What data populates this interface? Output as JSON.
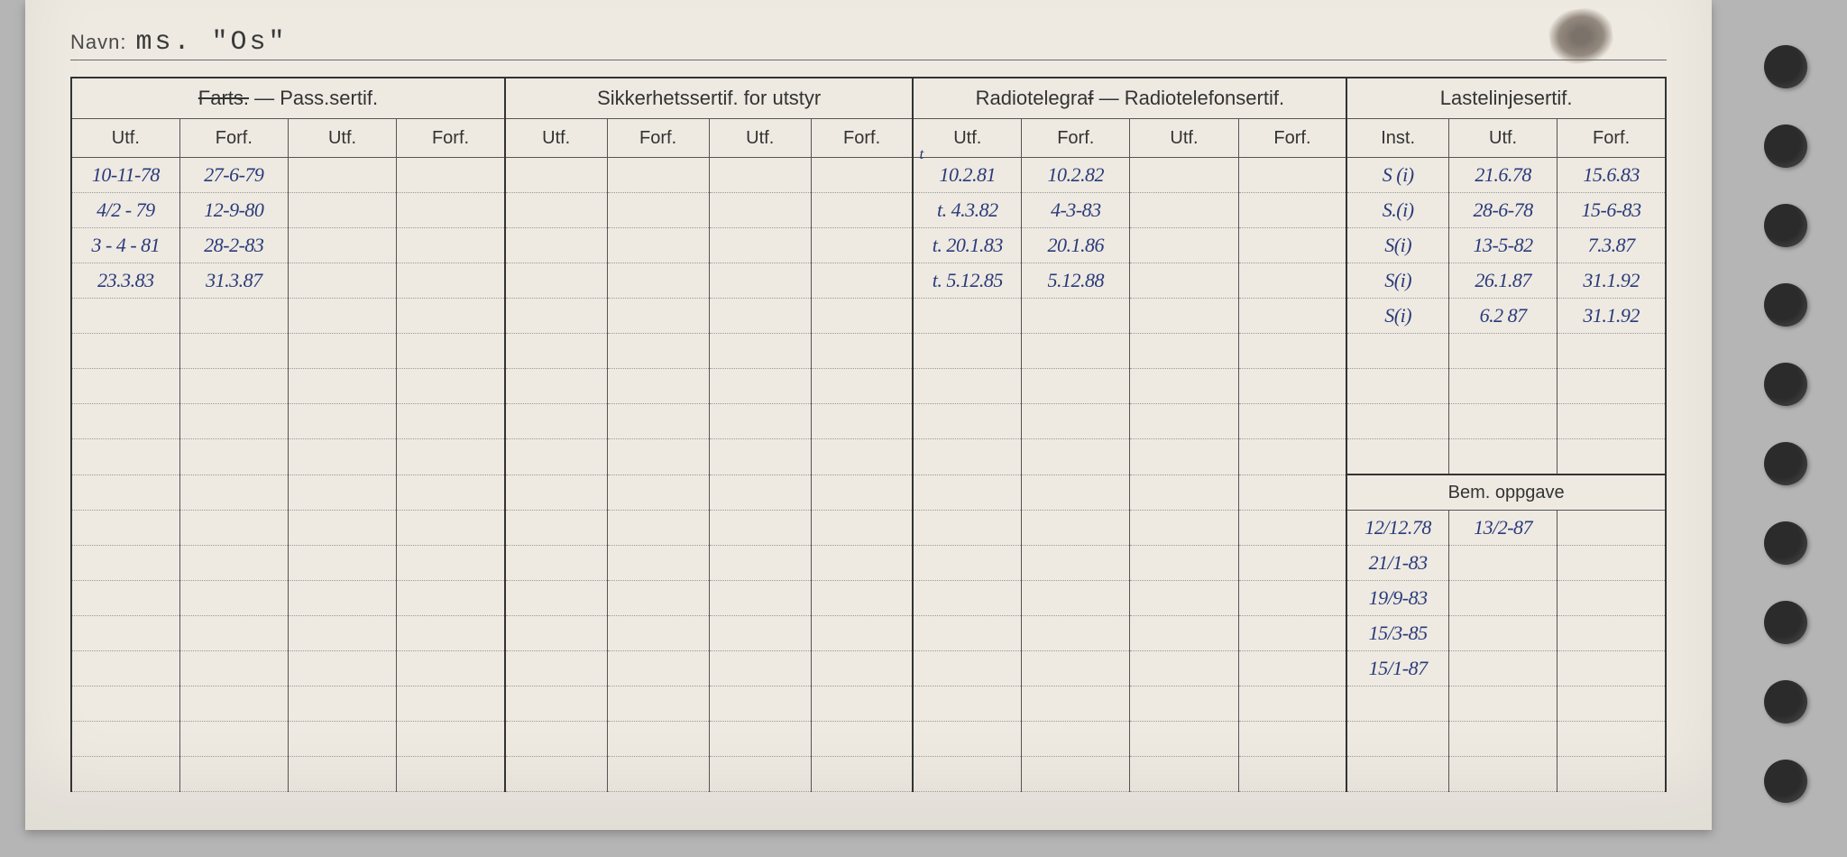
{
  "page": {
    "navn_label": "Navn:",
    "navn_value": "ms. \"Os\""
  },
  "headers": {
    "group1": "Farts. — Pass.sertif.",
    "group1_struck": "Farts.",
    "group1_rest": " — Pass.sertif.",
    "group2": "Sikkerhetssertif. for utstyr",
    "group3": "Radiotelegraf — Radiotelefonsertif.",
    "group3_struck": "f",
    "group4": "Lastelinjesertif.",
    "utf": "Utf.",
    "forf": "Forf.",
    "inst": "Inst.",
    "bem": "Bem. oppgave"
  },
  "pass": {
    "rows": [
      {
        "utf": "10-11-78",
        "forf": "27-6-79"
      },
      {
        "utf": "4/2 - 79",
        "forf": "12-9-80"
      },
      {
        "utf": "3 - 4 - 81",
        "forf": "28-2-83"
      },
      {
        "utf": "23.3.83",
        "forf": "31.3.87"
      }
    ]
  },
  "radio": {
    "rows": [
      {
        "note": "t",
        "utf": "10.2.81",
        "forf": "10.2.82"
      },
      {
        "utf": "t. 4.3.82",
        "forf": "4-3-83"
      },
      {
        "utf": "t. 20.1.83",
        "forf": "20.1.86"
      },
      {
        "utf": "t. 5.12.85",
        "forf": "5.12.88"
      }
    ]
  },
  "laste": {
    "rows": [
      {
        "inst": "S (i)",
        "utf": "21.6.78",
        "forf": "15.6.83"
      },
      {
        "inst": "S.(i)",
        "utf": "28-6-78",
        "forf": "15-6-83"
      },
      {
        "inst": "S(i)",
        "utf": "13-5-82",
        "forf": "7.3.87"
      },
      {
        "inst": "S(i)",
        "utf": "26.1.87",
        "forf": "31.1.92"
      },
      {
        "inst": "S(i)",
        "utf": "6.2 87",
        "forf": "31.1.92"
      }
    ]
  },
  "bem": {
    "rows": [
      {
        "c1": "12/12.78",
        "c2": "13/2-87"
      },
      {
        "c1": "21/1-83",
        "c2": ""
      },
      {
        "c1": "19/9-83",
        "c2": ""
      },
      {
        "c1": "15/3-85",
        "c2": ""
      },
      {
        "c1": "15/1-87",
        "c2": ""
      }
    ]
  },
  "style": {
    "ink_color": "#2a3a7a",
    "print_color": "#3a3a3a",
    "card_bg": "#eeeae2",
    "page_bg": "#b5b5b5"
  }
}
